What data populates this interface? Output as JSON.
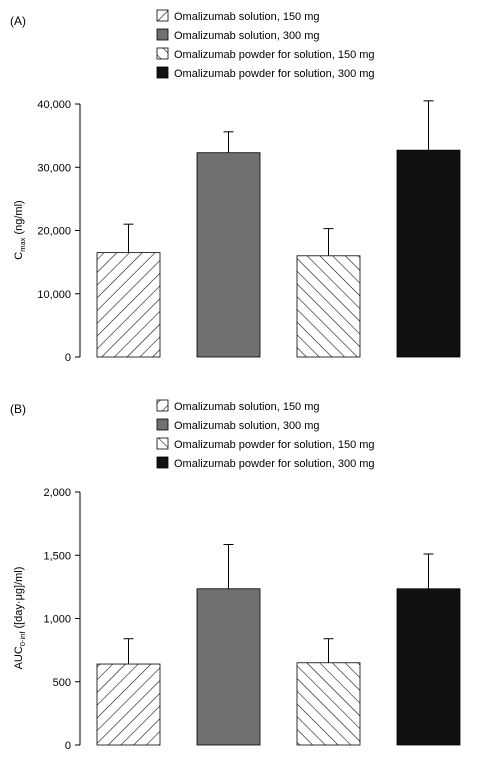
{
  "chart_data": [
    {
      "type": "bar",
      "panel_label": "(A)",
      "categories": [
        "Omalizumab solution, 150 mg",
        "Omalizumab solution, 300 mg",
        "Omalizumab powder for solution, 150 mg",
        "Omalizumab powder for solution, 300 mg"
      ],
      "legend": [
        "Omalizumab solution, 150 mg",
        "Omalizumab solution, 300 mg",
        "Omalizumab powder for solution, 150 mg",
        "Omalizumab powder for solution, 300 mg"
      ],
      "values": [
        16500,
        32300,
        16000,
        32700
      ],
      "error_upper": [
        4500,
        3300,
        4300,
        7800
      ],
      "ylabel_main": "C",
      "ylabel_sub": "max",
      "ylabel_unit": " (ng/ml)",
      "ylim": [
        0,
        40000
      ],
      "yticks": [
        0,
        10000,
        20000,
        30000,
        40000
      ],
      "ytick_labels": [
        "0",
        "10,000",
        "20,000",
        "30,000",
        "40,000"
      ],
      "legend_position": "top",
      "grid": false,
      "colors": [
        "hatch-forward",
        "#707070",
        "hatch-back",
        "#111111"
      ]
    },
    {
      "type": "bar",
      "panel_label": "(B)",
      "categories": [
        "Omalizumab solution, 150 mg",
        "Omalizumab solution, 300 mg",
        "Omalizumab powder for solution, 150 mg",
        "Omalizumab powder for solution, 300 mg"
      ],
      "legend": [
        "Omalizumab solution, 150 mg",
        "Omalizumab solution, 300 mg",
        "Omalizumab powder for solution, 150 mg",
        "Omalizumab powder for solution, 300 mg"
      ],
      "values": [
        640,
        1235,
        650,
        1235
      ],
      "error_upper": [
        200,
        350,
        190,
        275
      ],
      "ylabel_main": "AUC",
      "ylabel_sub": "0-inf",
      "ylabel_unit": " ([day·μg]/ml)",
      "ylim": [
        0,
        2000
      ],
      "yticks": [
        0,
        500,
        1000,
        1500,
        2000
      ],
      "ytick_labels": [
        "0",
        "500",
        "1,000",
        "1,500",
        "2,000"
      ],
      "legend_position": "top",
      "grid": false,
      "colors": [
        "hatch-forward",
        "#707070",
        "hatch-back",
        "#111111"
      ]
    }
  ]
}
